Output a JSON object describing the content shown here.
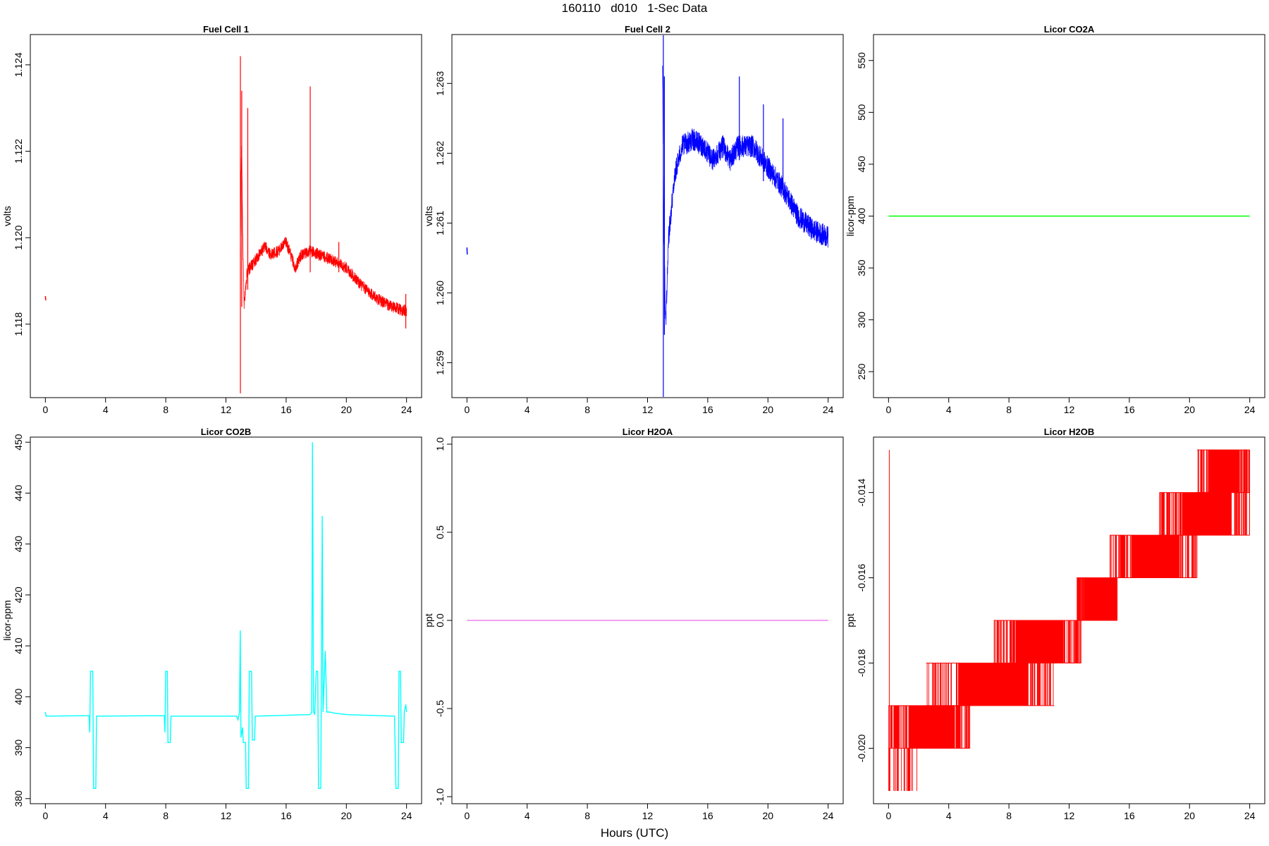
{
  "page": {
    "title": "160110   d010   1-Sec Data",
    "xlabel": "Hours (UTC)"
  },
  "chart_data": [
    {
      "type": "line",
      "title": "Fuel Cell 1",
      "ylabel": "volts",
      "color": "#ff0000",
      "xlim": [
        -1,
        25
      ],
      "ylim": [
        1.1163,
        1.1247
      ],
      "x_ticks": [
        0,
        4,
        8,
        12,
        16,
        20,
        24
      ],
      "y_ticks": [
        1.118,
        1.12,
        1.122,
        1.124
      ],
      "y_tick_labels": [
        "1.118",
        "1.120",
        "1.122",
        "1.124"
      ],
      "series": [
        {
          "style": "noisy",
          "noise": 0.00028,
          "points": [
            [
              0.0,
              1.11865
            ],
            [
              0.03,
              1.11855
            ],
            [
              12.95,
              1.1195
            ],
            [
              13.0,
              1.1214
            ],
            [
              13.05,
              1.1222
            ],
            [
              13.1,
              1.1204
            ],
            [
              13.2,
              1.1184
            ],
            [
              13.4,
              1.1192
            ],
            [
              14.0,
              1.1195
            ],
            [
              14.6,
              1.1198
            ],
            [
              15.0,
              1.1196
            ],
            [
              15.5,
              1.1197
            ],
            [
              16.0,
              1.1199
            ],
            [
              16.6,
              1.1193
            ],
            [
              17.0,
              1.1196
            ],
            [
              17.6,
              1.1197
            ],
            [
              18.2,
              1.1196
            ],
            [
              19.0,
              1.1195
            ],
            [
              20.0,
              1.1193
            ],
            [
              21.0,
              1.1189
            ],
            [
              22.0,
              1.1186
            ],
            [
              23.0,
              1.1184
            ],
            [
              24.0,
              1.1183
            ]
          ],
          "spikes": [
            [
              12.96,
              1.1164,
              1.1242
            ],
            [
              13.05,
              1.1184,
              1.1234
            ],
            [
              13.45,
              1.1188,
              1.123
            ],
            [
              17.6,
              1.1192,
              1.1235
            ],
            [
              19.5,
              1.1192,
              1.1199
            ],
            [
              23.95,
              1.1179,
              1.1187
            ]
          ]
        }
      ]
    },
    {
      "type": "line",
      "title": "Fuel Cell 2",
      "ylabel": "volts",
      "color": "#0000ff",
      "xlim": [
        -1,
        25
      ],
      "ylim": [
        1.2585,
        1.2637
      ],
      "x_ticks": [
        0,
        4,
        8,
        12,
        16,
        20,
        24
      ],
      "y_ticks": [
        1.259,
        1.26,
        1.261,
        1.262,
        1.263
      ],
      "y_tick_labels": [
        "1.259",
        "1.260",
        "1.261",
        "1.262",
        "1.263"
      ],
      "series": [
        {
          "style": "noisy",
          "noise": 0.00032,
          "points": [
            [
              0.0,
              1.26065
            ],
            [
              0.02,
              1.26055
            ],
            [
              13.0,
              1.2632
            ],
            [
              13.08,
              1.2612
            ],
            [
              13.2,
              1.2595
            ],
            [
              13.4,
              1.2608
            ],
            [
              13.8,
              1.2617
            ],
            [
              14.3,
              1.2621
            ],
            [
              15.0,
              1.2622
            ],
            [
              15.7,
              1.2621
            ],
            [
              16.3,
              1.2619
            ],
            [
              17.0,
              1.2621
            ],
            [
              17.5,
              1.2619
            ],
            [
              18.0,
              1.2621
            ],
            [
              19.0,
              1.2621
            ],
            [
              20.0,
              1.2618
            ],
            [
              21.0,
              1.2615
            ],
            [
              22.0,
              1.2611
            ],
            [
              23.0,
              1.2609
            ],
            [
              24.0,
              1.2608
            ]
          ],
          "spikes": [
            [
              13.05,
              1.2585,
              1.2637
            ],
            [
              13.12,
              1.2594,
              1.2631
            ],
            [
              18.1,
              1.2619,
              1.2631
            ],
            [
              19.7,
              1.2616,
              1.2627
            ],
            [
              21.0,
              1.2614,
              1.2625
            ]
          ]
        }
      ]
    },
    {
      "type": "line",
      "title": "Licor CO2A",
      "ylabel": "licor-ppm",
      "color": "#00ff00",
      "xlim": [
        -1,
        25
      ],
      "ylim": [
        225,
        575
      ],
      "x_ticks": [
        0,
        4,
        8,
        12,
        16,
        20,
        24
      ],
      "y_ticks": [
        250,
        300,
        350,
        400,
        450,
        500,
        550
      ],
      "y_tick_labels": [
        "250",
        "300",
        "350",
        "400",
        "450",
        "500",
        "550"
      ],
      "series": [
        {
          "style": "line",
          "points": [
            [
              0,
              400
            ],
            [
              24,
              400
            ]
          ]
        }
      ]
    },
    {
      "type": "line",
      "title": "Licor CO2B",
      "ylabel": "licor-ppm",
      "color": "#00ffff",
      "xlim": [
        -1,
        25
      ],
      "ylim": [
        379,
        451
      ],
      "x_ticks": [
        0,
        4,
        8,
        12,
        16,
        20,
        24
      ],
      "y_ticks": [
        380,
        390,
        400,
        410,
        420,
        430,
        440,
        450
      ],
      "y_tick_labels": [
        "380",
        "390",
        "400",
        "410",
        "420",
        "430",
        "440",
        "450"
      ],
      "series": [
        {
          "style": "line",
          "points": [
            [
              0.0,
              397
            ],
            [
              0.05,
              396.2
            ],
            [
              2.9,
              396.3
            ],
            [
              2.95,
              393
            ],
            [
              3.0,
              405
            ],
            [
              3.15,
              405
            ],
            [
              3.2,
              382
            ],
            [
              3.35,
              382
            ],
            [
              3.4,
              396.2
            ],
            [
              7.9,
              396.3
            ],
            [
              7.95,
              393
            ],
            [
              8.0,
              405
            ],
            [
              8.1,
              405
            ],
            [
              8.15,
              391
            ],
            [
              8.3,
              391
            ],
            [
              8.35,
              396.2
            ],
            [
              12.7,
              396.2
            ],
            [
              12.8,
              395.5
            ],
            [
              12.9,
              397
            ],
            [
              12.95,
              413
            ],
            [
              13.0,
              392
            ],
            [
              13.1,
              394
            ],
            [
              13.15,
              391
            ],
            [
              13.3,
              391
            ],
            [
              13.35,
              382
            ],
            [
              13.5,
              382
            ],
            [
              13.55,
              405
            ],
            [
              13.7,
              405
            ],
            [
              13.75,
              391.5
            ],
            [
              13.9,
              391.5
            ],
            [
              13.95,
              396.2
            ],
            [
              17.6,
              396.5
            ],
            [
              17.7,
              397
            ],
            [
              17.75,
              450
            ],
            [
              17.82,
              397
            ],
            [
              17.9,
              396.5
            ],
            [
              18.0,
              405
            ],
            [
              18.1,
              405
            ],
            [
              18.15,
              382
            ],
            [
              18.3,
              382
            ],
            [
              18.4,
              435.5
            ],
            [
              18.45,
              397
            ],
            [
              18.6,
              409
            ],
            [
              18.7,
              397
            ],
            [
              18.9,
              397
            ],
            [
              19.2,
              396.8
            ],
            [
              20.0,
              396.5
            ],
            [
              23.2,
              396.2
            ],
            [
              23.3,
              382
            ],
            [
              23.45,
              382
            ],
            [
              23.5,
              405
            ],
            [
              23.6,
              405
            ],
            [
              23.65,
              391
            ],
            [
              23.8,
              391
            ],
            [
              23.85,
              397
            ],
            [
              23.95,
              398.5
            ],
            [
              24.0,
              397
            ]
          ]
        }
      ]
    },
    {
      "type": "line",
      "title": "Licor H2OA",
      "ylabel": "ppt",
      "color": "#ee82ee",
      "xlim": [
        -1,
        25
      ],
      "ylim": [
        -1.04,
        1.04
      ],
      "x_ticks": [
        0,
        4,
        8,
        12,
        16,
        20,
        24
      ],
      "y_ticks": [
        -1.0,
        -0.5,
        0.0,
        0.5,
        1.0
      ],
      "y_tick_labels": [
        "-1.0",
        "-0.5",
        "0.0",
        "0.5",
        "1.0"
      ],
      "series": [
        {
          "style": "line",
          "points": [
            [
              0,
              0
            ],
            [
              24,
              0
            ]
          ]
        }
      ]
    },
    {
      "type": "line",
      "title": "Licor H2OB",
      "ylabel": "ppt",
      "color": "#ff0000",
      "xlim": [
        -1,
        25
      ],
      "ylim": [
        -0.0213,
        -0.0127
      ],
      "x_ticks": [
        0,
        4,
        8,
        12,
        16,
        20,
        24
      ],
      "y_ticks": [
        -0.02,
        -0.018,
        -0.016,
        -0.014
      ],
      "y_tick_labels": [
        "-0.020",
        "-0.018",
        "-0.016",
        "-0.014"
      ],
      "series": [
        {
          "style": "steps",
          "levels": [
            {
              "x0": 0.0,
              "x1": 5.4,
              "lo": -0.02,
              "hi": -0.019
            },
            {
              "x0": 2.5,
              "x1": 11.0,
              "lo": -0.019,
              "hi": -0.018
            },
            {
              "x0": 7.0,
              "x1": 12.8,
              "lo": -0.018,
              "hi": -0.017
            },
            {
              "x0": 12.5,
              "x1": 15.2,
              "lo": -0.017,
              "hi": -0.016
            },
            {
              "x0": 14.7,
              "x1": 20.5,
              "lo": -0.016,
              "hi": -0.015
            },
            {
              "x0": 18.0,
              "x1": 24.0,
              "lo": -0.015,
              "hi": -0.014
            },
            {
              "x0": 20.5,
              "x1": 24.0,
              "lo": -0.014,
              "hi": -0.013
            }
          ],
          "spikes": [
            [
              0.05,
              -0.021,
              -0.013
            ]
          ]
        }
      ]
    }
  ]
}
